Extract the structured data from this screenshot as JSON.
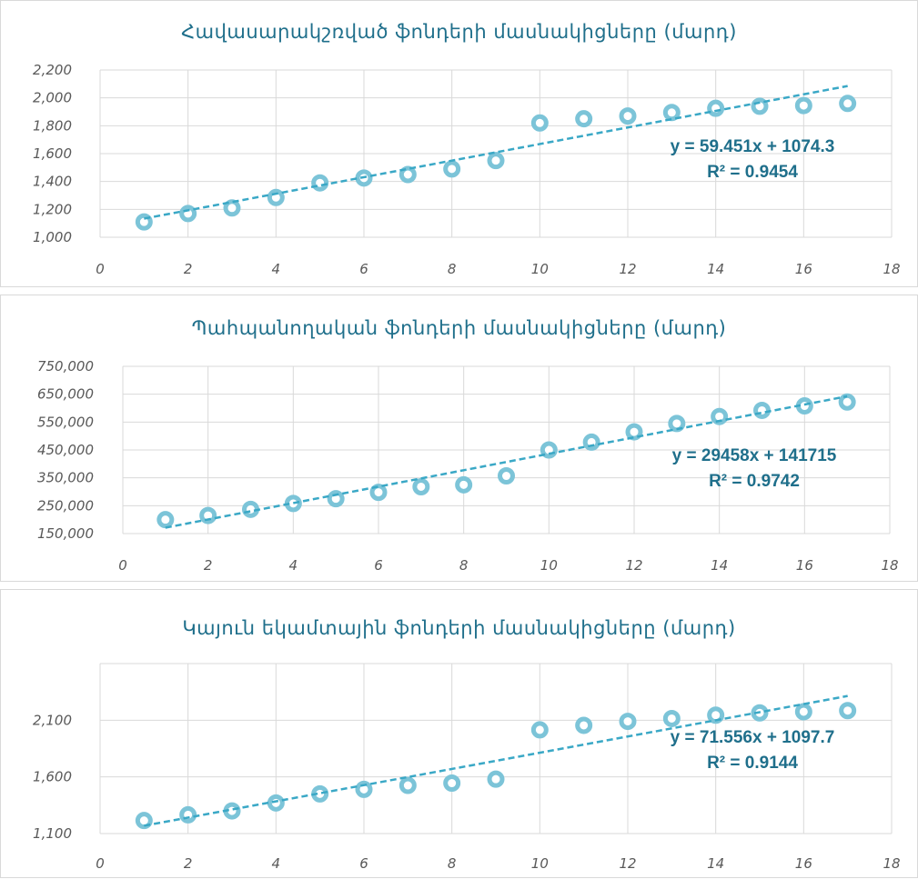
{
  "colors": {
    "marker": "#7cc4d8",
    "trendline": "#3aa8c6",
    "title": "#1f6f8b",
    "grid": "#d9d9d9",
    "tick_text": "#595959"
  },
  "chart_data": [
    {
      "type": "scatter",
      "title": "Հավասարակշռված ֆոնդերի մասնակիցները (մարդ)",
      "x": [
        1,
        2,
        3,
        4,
        5,
        6,
        7,
        8,
        9,
        10,
        11,
        12,
        13,
        14,
        15,
        16,
        17
      ],
      "y": [
        1110,
        1170,
        1210,
        1285,
        1390,
        1425,
        1450,
        1490,
        1550,
        1820,
        1850,
        1870,
        1895,
        1925,
        1940,
        1945,
        1960
      ],
      "xlim": [
        0,
        18
      ],
      "ylim": [
        1000,
        2200
      ],
      "xticks": [
        "0",
        "2",
        "4",
        "6",
        "8",
        "10",
        "12",
        "14",
        "16",
        "18"
      ],
      "yticks": [
        "1,000",
        "1,200",
        "1,400",
        "1,600",
        "1,800",
        "2,000",
        "2,200"
      ],
      "grid": true,
      "trendline": {
        "type": "linear",
        "slope": 59.451,
        "intercept": 1074.3,
        "equation": "y = 59.451x + 1074.3",
        "r2": "R² = 0.9454"
      }
    },
    {
      "type": "scatter",
      "title": "Պահպանողական ֆոնդերի մասնակիցները (մարդ)",
      "x": [
        1,
        2,
        3,
        4,
        5,
        6,
        7,
        8,
        9,
        10,
        11,
        12,
        13,
        14,
        15,
        16,
        17
      ],
      "y": [
        200000,
        215000,
        237000,
        258000,
        275000,
        298000,
        318000,
        325000,
        357000,
        450000,
        478000,
        515000,
        545000,
        570000,
        592000,
        608000,
        622000
      ],
      "xlim": [
        0,
        18
      ],
      "ylim": [
        150000,
        750000
      ],
      "xticks": [
        "0",
        "2",
        "4",
        "6",
        "8",
        "10",
        "12",
        "14",
        "16",
        "18"
      ],
      "yticks": [
        "150,000",
        "250,000",
        "350,000",
        "450,000",
        "550,000",
        "650,000",
        "750,000"
      ],
      "grid": true,
      "trendline": {
        "type": "linear",
        "slope": 29458,
        "intercept": 141715,
        "equation": "y = 29458x + 141715",
        "r2": "R² = 0.9742"
      }
    },
    {
      "type": "scatter",
      "title": "Կայուն եկամտային ֆոնդերի մասնակիցները (մարդ)",
      "x": [
        1,
        2,
        3,
        4,
        5,
        6,
        7,
        8,
        9,
        10,
        11,
        12,
        13,
        14,
        15,
        16,
        17
      ],
      "y": [
        1215,
        1265,
        1300,
        1370,
        1450,
        1490,
        1525,
        1545,
        1580,
        2015,
        2055,
        2090,
        2115,
        2145,
        2165,
        2175,
        2185
      ],
      "xlim": [
        0,
        18
      ],
      "ylim": [
        1100,
        2600
      ],
      "xticks": [
        "0",
        "2",
        "4",
        "6",
        "8",
        "10",
        "12",
        "14",
        "16",
        "18"
      ],
      "yticks": [
        "1,100",
        "1,600",
        "2,100"
      ],
      "grid": true,
      "trendline": {
        "type": "linear",
        "slope": 71.556,
        "intercept": 1097.7,
        "equation": "y = 71.556x + 1097.7",
        "r2": "R² = 0.9144"
      }
    }
  ]
}
